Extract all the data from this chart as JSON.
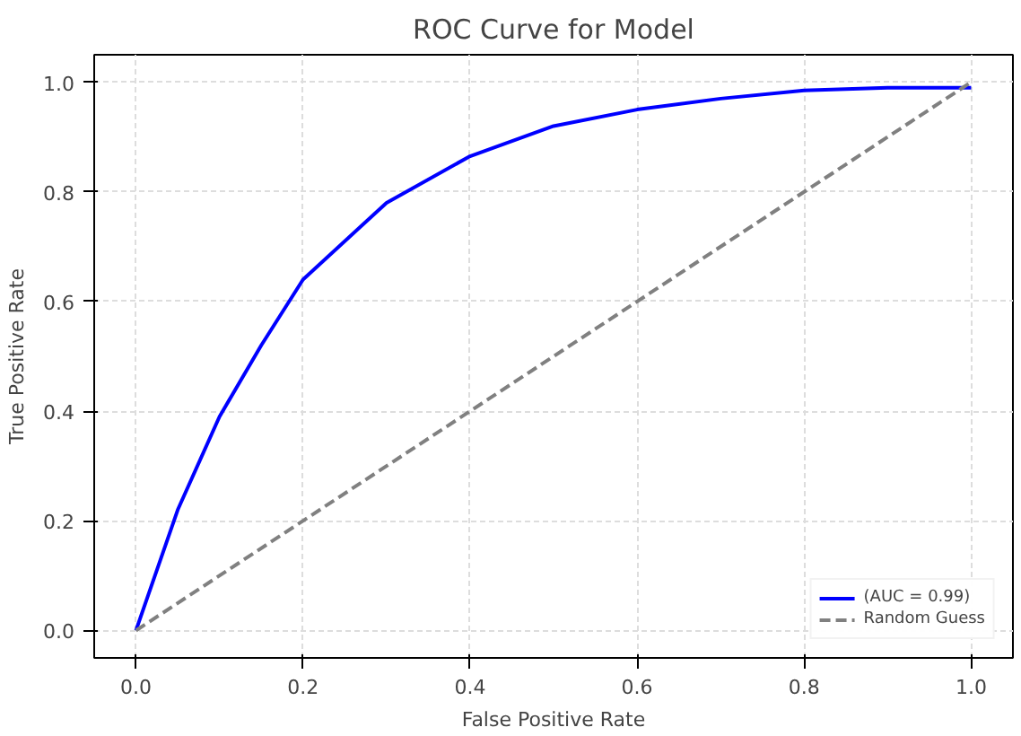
{
  "chart_data": {
    "type": "line",
    "title": "ROC Curve for Model",
    "xlabel": "False Positive Rate",
    "ylabel": "True Positive Rate",
    "xlim": [
      -0.05,
      1.05
    ],
    "ylim": [
      -0.05,
      1.05
    ],
    "xticks": [
      {
        "value": 0,
        "label": "0.0"
      },
      0.2,
      0.4,
      0.6,
      0.8,
      {
        "value": 1,
        "label": "1.0"
      }
    ],
    "yticks": [
      {
        "value": 0,
        "label": "0.0"
      },
      0.2,
      0.4,
      0.6,
      0.8,
      {
        "value": 1,
        "label": "1.0"
      }
    ],
    "grid": true,
    "legend": "bottom right",
    "series": [
      {
        "name": "(AUC = 0.99)",
        "color": "#0000ff",
        "line_style": "solid",
        "x": [
          0,
          0.05,
          0.1,
          0.15,
          0.2,
          0.3,
          0.4,
          0.5,
          0.6,
          0.7,
          0.8,
          0.9,
          1.0
        ],
        "values": [
          0,
          0.22,
          0.39,
          0.52,
          0.64,
          0.78,
          0.865,
          0.92,
          0.95,
          0.97,
          0.985,
          0.99,
          0.99
        ]
      },
      {
        "name": "Random Guess",
        "color": "#808080",
        "line_style": "dashed",
        "x": [
          0,
          1
        ],
        "values": [
          0,
          1
        ]
      }
    ]
  }
}
